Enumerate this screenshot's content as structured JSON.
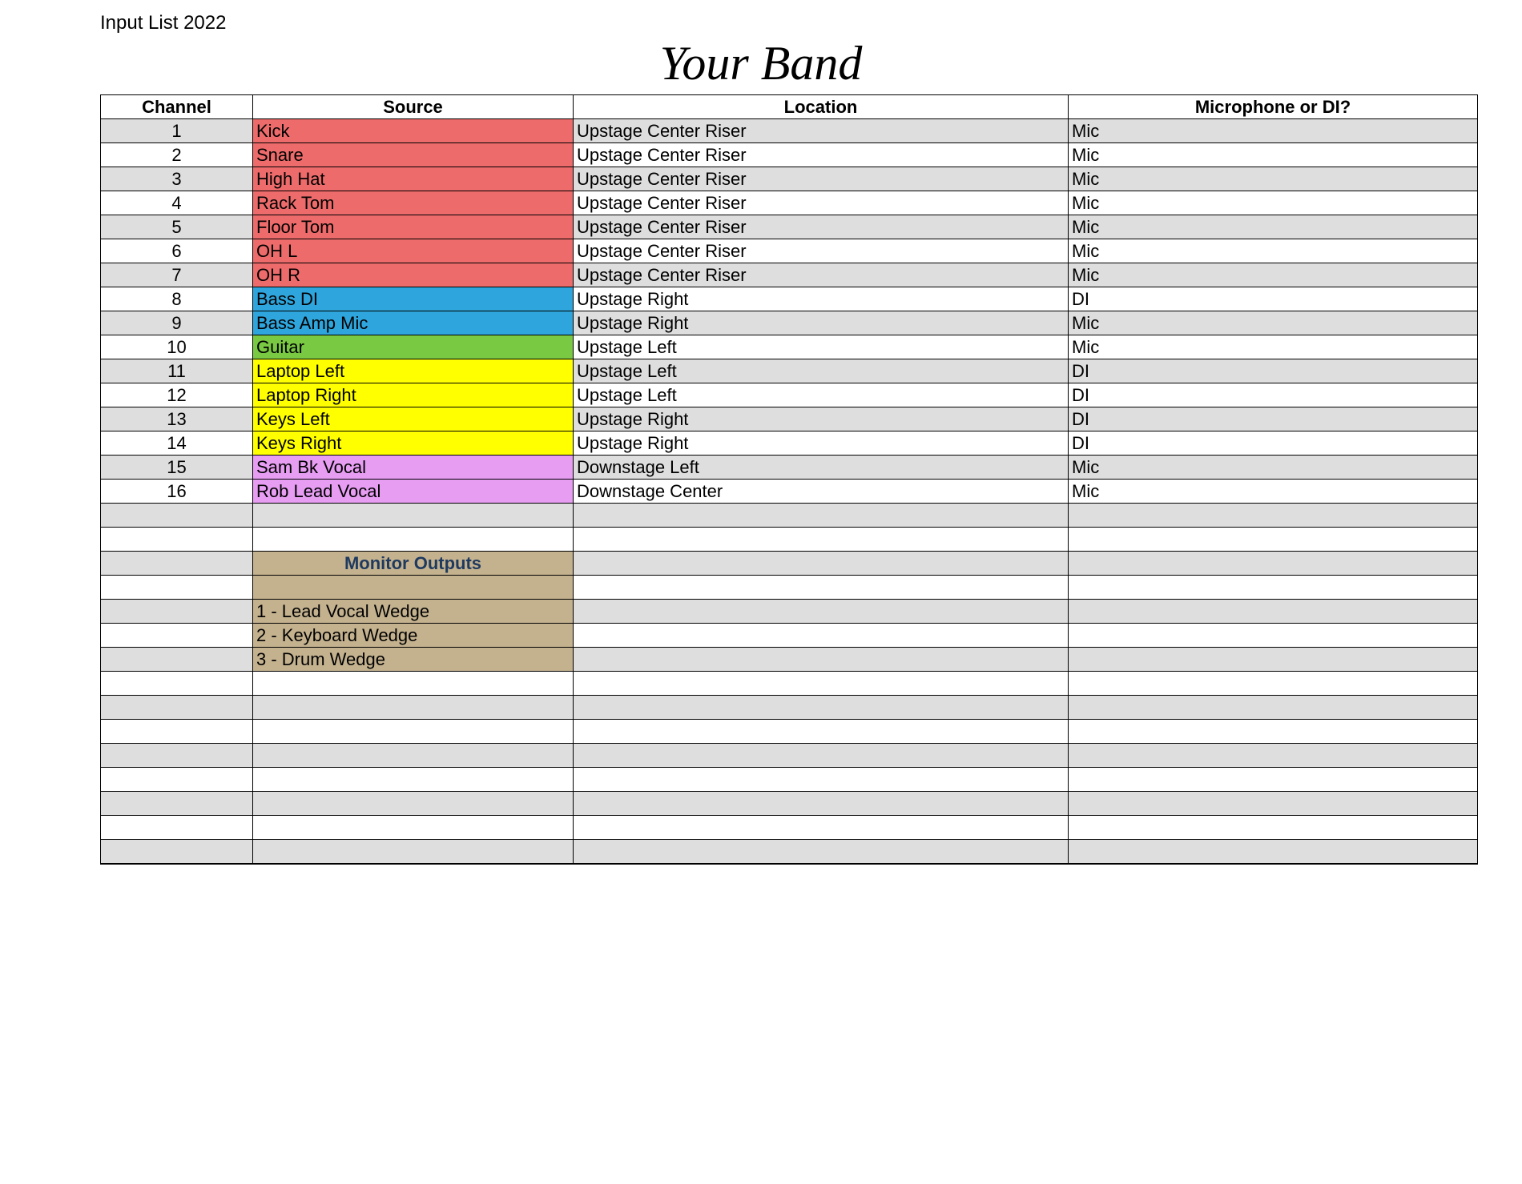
{
  "page_label": "Input List 2022",
  "band_title": "Your Band",
  "columns": {
    "channel": "Channel",
    "source": "Source",
    "location": "Location",
    "mic": "Microphone or DI?"
  },
  "colors": {
    "red": "#ee6b6b",
    "blue": "#2ea6dd",
    "green": "#7ac943",
    "yellow": "#ffff00",
    "violet": "#e69df2",
    "tan": "#c4b28f",
    "alt": "#dedede",
    "white": "#ffffff"
  },
  "inputs": [
    {
      "ch": "1",
      "source": "Kick",
      "loc": "Upstage Center  Riser",
      "mic": "Mic",
      "color": "red"
    },
    {
      "ch": "2",
      "source": "Snare",
      "loc": "Upstage Center  Riser",
      "mic": "Mic",
      "color": "red"
    },
    {
      "ch": "3",
      "source": "High Hat",
      "loc": "Upstage Center  Riser",
      "mic": "Mic",
      "color": "red"
    },
    {
      "ch": "4",
      "source": "Rack Tom",
      "loc": "Upstage Center  Riser",
      "mic": "Mic",
      "color": "red"
    },
    {
      "ch": "5",
      "source": "Floor Tom",
      "loc": "Upstage Center  Riser",
      "mic": "Mic",
      "color": "red"
    },
    {
      "ch": "6",
      "source": "OH L",
      "loc": "Upstage Center  Riser",
      "mic": "Mic",
      "color": "red"
    },
    {
      "ch": "7",
      "source": "OH R",
      "loc": "Upstage Center  Riser",
      "mic": "Mic",
      "color": "red"
    },
    {
      "ch": "8",
      "source": "Bass DI",
      "loc": "Upstage Right",
      "mic": "DI",
      "color": "blue"
    },
    {
      "ch": "9",
      "source": "Bass Amp Mic",
      "loc": "Upstage Right",
      "mic": "Mic",
      "color": "blue"
    },
    {
      "ch": "10",
      "source": "Guitar",
      "loc": "Upstage Left",
      "mic": "Mic",
      "color": "green"
    },
    {
      "ch": "11",
      "source": "Laptop Left",
      "loc": "Upstage Left",
      "mic": "DI",
      "color": "yellow"
    },
    {
      "ch": "12",
      "source": "Laptop Right",
      "loc": "Upstage Left",
      "mic": "DI",
      "color": "yellow"
    },
    {
      "ch": "13",
      "source": "Keys Left",
      "loc": "Upstage Right",
      "mic": "DI",
      "color": "yellow"
    },
    {
      "ch": "14",
      "source": "Keys Right",
      "loc": "Upstage Right",
      "mic": "DI",
      "color": "yellow"
    },
    {
      "ch": "15",
      "source": "Sam Bk Vocal",
      "loc": "Downstage Left",
      "mic": "Mic",
      "color": "violet"
    },
    {
      "ch": "16",
      "source": "Rob Lead Vocal",
      "loc": "Downstage Center",
      "mic": "Mic",
      "color": "violet"
    }
  ],
  "monitor_header": "Monitor Outputs",
  "monitors": [
    "1 - Lead Vocal Wedge",
    "2 - Keyboard Wedge",
    "3 - Drum Wedge"
  ],
  "layout": {
    "total_body_rows": 31,
    "mon_header_body_row": 19,
    "mon_spacer_body_row": 20,
    "mon_list_start_body_row": 21
  }
}
